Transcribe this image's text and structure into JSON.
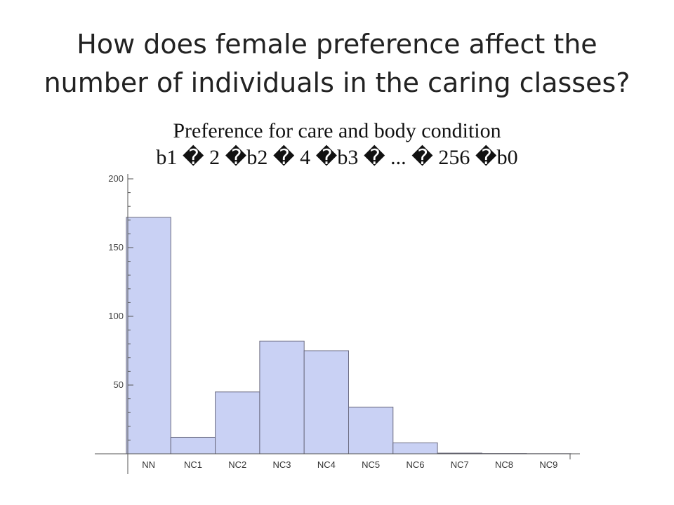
{
  "slide": {
    "title_line1": "How does female preference affect the",
    "title_line2": "number of individuals in the caring classes?"
  },
  "chart_data": {
    "type": "bar",
    "title": "Preference for care and body condition",
    "subtitle": "b1 � 2 �b2 � 4 �b3 � ... � 256 �b0",
    "categories": [
      "NN",
      "NC1",
      "NC2",
      "NC3",
      "NC4",
      "NC5",
      "NC6",
      "NC7",
      "NC8",
      "NC9"
    ],
    "values": [
      172,
      12,
      45,
      82,
      75,
      34,
      8,
      0.5,
      0.2,
      0.1
    ],
    "ylim": [
      0,
      200
    ],
    "yticks": [
      50,
      100,
      150,
      200
    ],
    "xlabel": "",
    "ylabel": "",
    "grid": false,
    "bar_fill": "#c9d1f4",
    "bar_edge": "#6b6b80",
    "axis_color": "#555555"
  }
}
